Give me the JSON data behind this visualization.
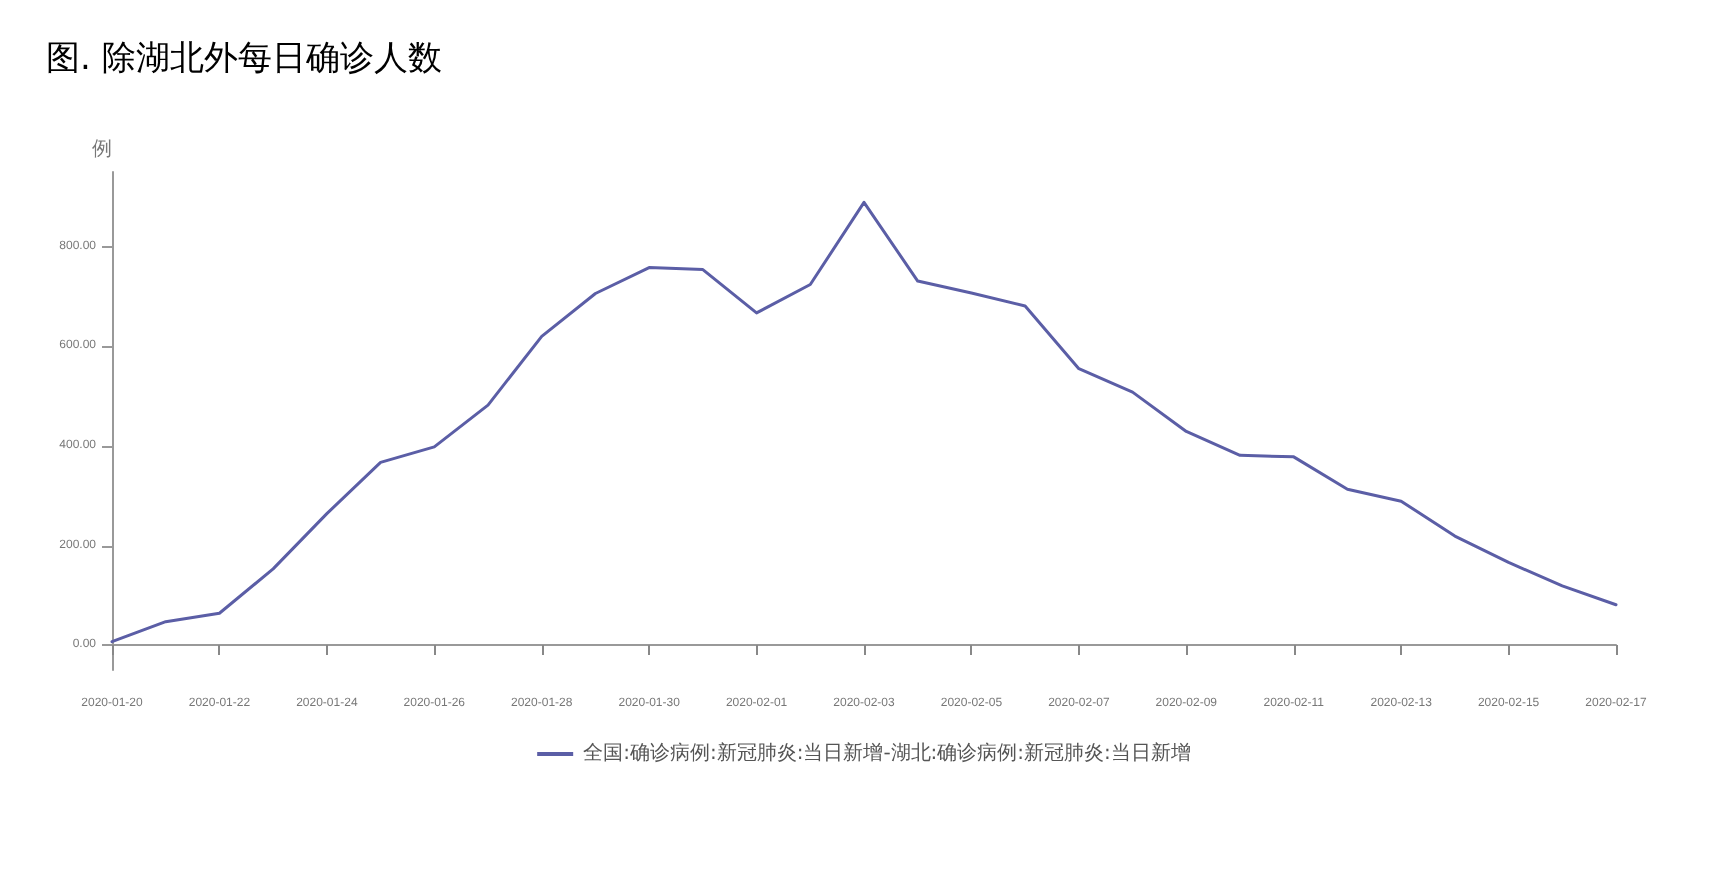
{
  "chart_data": {
    "type": "line",
    "title": "图. 除湖北外每日确诊人数",
    "ylabel": "例",
    "categories": [
      "2020-01-20",
      null,
      "2020-01-22",
      null,
      "2020-01-24",
      null,
      "2020-01-26",
      null,
      "2020-01-28",
      null,
      "2020-01-30",
      null,
      "2020-02-01",
      null,
      "2020-02-03",
      null,
      "2020-02-05",
      null,
      "2020-02-07",
      null,
      "2020-02-09",
      null,
      "2020-02-11",
      null,
      "2020-02-13",
      null,
      "2020-02-15",
      null,
      "2020-02-17"
    ],
    "series": [
      {
        "name": "全国:确诊病例:新冠肺炎:当日新增-湖北:确诊病例:新冠肺炎:当日新增",
        "color": "#5b5ea6",
        "values": [
          7,
          47,
          64,
          153,
          264,
          367,
          398,
          482,
          620,
          706,
          758,
          754,
          667,
          724,
          889,
          731,
          707,
          681,
          555,
          508,
          429,
          381,
          378,
          313,
          289,
          219,
          166,
          119,
          81
        ]
      }
    ],
    "ylim": [
      -50,
      950
    ],
    "yticks": [
      {
        "value": 0,
        "label": "0.00"
      },
      {
        "value": 200,
        "label": "200.00"
      },
      {
        "value": 400,
        "label": "400.00"
      },
      {
        "value": 600,
        "label": "600.00"
      },
      {
        "value": 800,
        "label": "800.00"
      }
    ],
    "legend": "bottom",
    "marker": "none",
    "line_style": "solid"
  }
}
